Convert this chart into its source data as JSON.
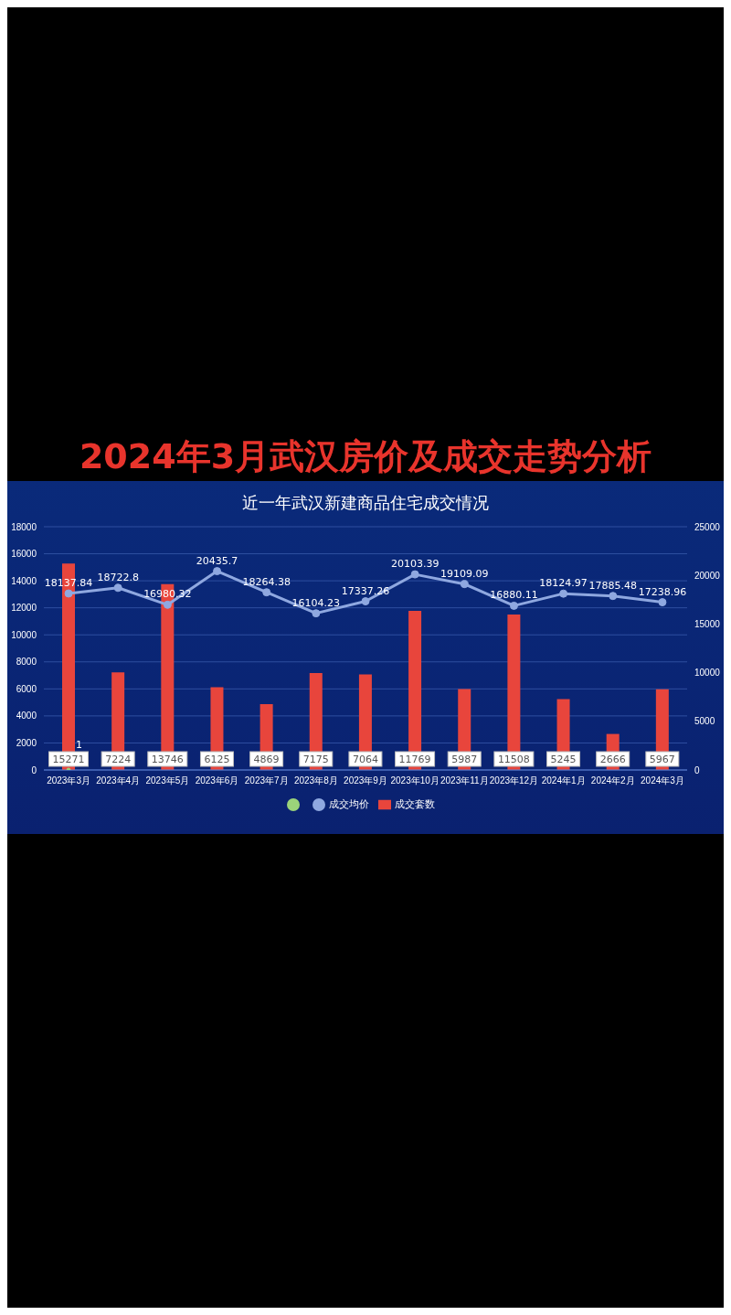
{
  "chart_data": {
    "type": "bar",
    "title": "2024年3月武汉房价及成交走势分析",
    "subtitle": "近一年武汉新建商品住宅成交情况",
    "categories": [
      "2023年3月",
      "2023年4月",
      "2023年5月",
      "2023年6月",
      "2023年7月",
      "2023年8月",
      "2023年9月",
      "2023年10月",
      "2023年11月",
      "2023年12月",
      "2024年1月",
      "2024年2月",
      "2024年3月"
    ],
    "series": [
      {
        "name": "成交套数",
        "color": "#e8453c",
        "values": [
          15271,
          7224,
          13746,
          6125,
          4869,
          7175,
          7064,
          11769,
          5987,
          11508,
          5245,
          2666,
          5967
        ]
      },
      {
        "type": "line",
        "color": "#9bd37a",
        "marker": "circle",
        "values": [
          1,
          null,
          null,
          null,
          null,
          null,
          null,
          null,
          null,
          null,
          null,
          null,
          null
        ]
      },
      {
        "name": "成交均价",
        "type": "line",
        "axis": "y2",
        "color": "#8fa8e0",
        "marker": "circle",
        "values": [
          18137.84,
          18722.8,
          16980.32,
          20435.7,
          18264.38,
          16104.23,
          17337.26,
          20103.39,
          19109.09,
          16880.11,
          18124.97,
          17885.48,
          17238.96
        ]
      }
    ],
    "ylim": [
      0,
      18000
    ],
    "yticks": [
      0,
      2000,
      4000,
      6000,
      8000,
      10000,
      12000,
      14000,
      16000,
      18000
    ],
    "y2lim": [
      0,
      25000
    ],
    "y2ticks": [
      0,
      5000,
      10000,
      15000,
      20000,
      25000
    ],
    "grid": "y",
    "legend": "bottom",
    "data_labels": true
  }
}
